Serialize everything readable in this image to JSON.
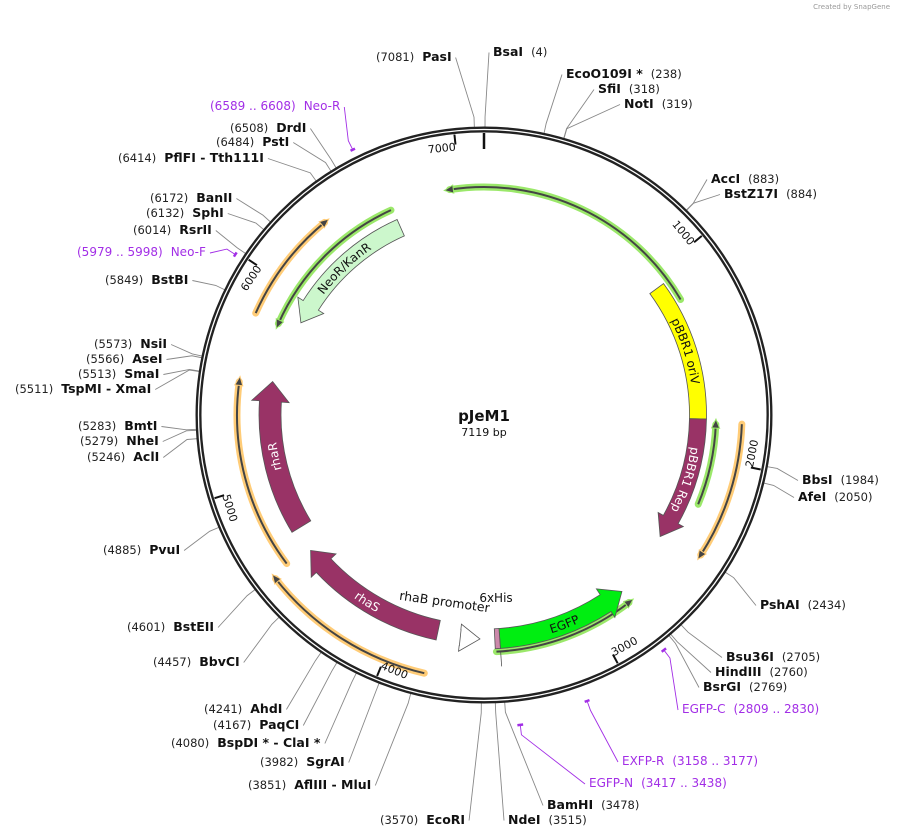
{
  "credit": "Created by SnapGene",
  "plasmid": {
    "name": "pJeM1",
    "length_label": "7119 bp",
    "length": 7119
  },
  "ticks": [
    "1000",
    "2000",
    "3000",
    "4000",
    "5000",
    "6000",
    "7000"
  ],
  "sites": [
    {
      "name": "PasI",
      "pos": 7081,
      "pos_label": "(7081)"
    },
    {
      "name": "BsaI",
      "pos": 4,
      "pos_label": "(4)"
    },
    {
      "name": "EcoO109I *",
      "pos": 238,
      "pos_label": "(238)"
    },
    {
      "name": "SfiI",
      "pos": 318,
      "pos_label": "(318)"
    },
    {
      "name": "NotI",
      "pos": 319,
      "pos_label": "(319)"
    },
    {
      "name": "AccI",
      "pos": 883,
      "pos_label": "(883)"
    },
    {
      "name": "BstZ17I",
      "pos": 884,
      "pos_label": "(884)"
    },
    {
      "name": "BbsI",
      "pos": 1984,
      "pos_label": "(1984)"
    },
    {
      "name": "AfeI",
      "pos": 2050,
      "pos_label": "(2050)"
    },
    {
      "name": "PshAI",
      "pos": 2434,
      "pos_label": "(2434)"
    },
    {
      "name": "Bsu36I",
      "pos": 2705,
      "pos_label": "(2705)"
    },
    {
      "name": "HindIII",
      "pos": 2760,
      "pos_label": "(2760)"
    },
    {
      "name": "BsrGI",
      "pos": 2769,
      "pos_label": "(2769)"
    },
    {
      "name": "BamHI",
      "pos": 3478,
      "pos_label": "(3478)"
    },
    {
      "name": "NdeI",
      "pos": 3515,
      "pos_label": "(3515)"
    },
    {
      "name": "EcoRI",
      "pos": 3570,
      "pos_label": "(3570)"
    },
    {
      "name": "AflIII  - MluI",
      "pos": 3851,
      "pos_label": "(3851)"
    },
    {
      "name": "SgrAI",
      "pos": 3982,
      "pos_label": "(3982)"
    },
    {
      "name": "BspDI * - ClaI *",
      "pos": 4080,
      "pos_label": "(4080)"
    },
    {
      "name": "PaqCI",
      "pos": 4167,
      "pos_label": "(4167)"
    },
    {
      "name": "AhdI",
      "pos": 4241,
      "pos_label": "(4241)"
    },
    {
      "name": "BbvCI",
      "pos": 4457,
      "pos_label": "(4457)"
    },
    {
      "name": "BstEII",
      "pos": 4601,
      "pos_label": "(4601)"
    },
    {
      "name": "PvuI",
      "pos": 4885,
      "pos_label": "(4885)"
    },
    {
      "name": "AclI",
      "pos": 5246,
      "pos_label": "(5246)"
    },
    {
      "name": "NheI",
      "pos": 5279,
      "pos_label": "(5279)"
    },
    {
      "name": "BmtI",
      "pos": 5283,
      "pos_label": "(5283)"
    },
    {
      "name": "TspMI  - XmaI",
      "pos": 5511,
      "pos_label": "(5511)"
    },
    {
      "name": "SmaI",
      "pos": 5513,
      "pos_label": "(5513)"
    },
    {
      "name": "AseI",
      "pos": 5566,
      "pos_label": "(5566)"
    },
    {
      "name": "NsiI",
      "pos": 5573,
      "pos_label": "(5573)"
    },
    {
      "name": "BstBI",
      "pos": 5849,
      "pos_label": "(5849)"
    },
    {
      "name": "RsrII",
      "pos": 6014,
      "pos_label": "(6014)"
    },
    {
      "name": "SphI",
      "pos": 6132,
      "pos_label": "(6132)"
    },
    {
      "name": "BanII",
      "pos": 6172,
      "pos_label": "(6172)"
    },
    {
      "name": "PflFI  - Tth111I",
      "pos": 6414,
      "pos_label": "(6414)"
    },
    {
      "name": "PstI",
      "pos": 6484,
      "pos_label": "(6484)"
    },
    {
      "name": "DrdI",
      "pos": 6508,
      "pos_label": "(6508)"
    }
  ],
  "primers": [
    {
      "name": "Neo-R",
      "start": 6589,
      "end": 6608,
      "range_label": "(6589 .. 6608)"
    },
    {
      "name": "Neo-F",
      "start": 5979,
      "end": 5998,
      "range_label": "(5979 .. 5998)"
    },
    {
      "name": "EGFP-C",
      "start": 2809,
      "end": 2830,
      "range_label": "(2809 .. 2830)"
    },
    {
      "name": "EXFP-R",
      "start": 3158,
      "end": 3177,
      "range_label": "(3158 .. 3177)"
    },
    {
      "name": "EGFP-N",
      "start": 3417,
      "end": 3438,
      "range_label": "(3417 .. 3438)"
    }
  ],
  "features": [
    {
      "name": "pBBR1 oriV",
      "start": 1064,
      "end": 1800,
      "direction": "none",
      "color": "#ffff00",
      "text_color": "#111111"
    },
    {
      "name": "pBBR1 Rep",
      "start": 1800,
      "end": 2464,
      "direction": "forward",
      "color": "#993366",
      "text_color": "#ffffff"
    },
    {
      "name": "EGFP",
      "start": 2808,
      "end": 3480,
      "direction": "reverse",
      "color": "#00ee11",
      "text_color": "#111111"
    },
    {
      "name": "6xHis",
      "start": 3480,
      "end": 3505,
      "direction": "none",
      "color": "#cc88aa",
      "text_color": "#111111"
    },
    {
      "name": "rhaB promoter",
      "start": 3580,
      "end": 3680,
      "direction": "reverse",
      "color": "#ffffff",
      "text_color": "#111111"
    },
    {
      "name": "rhaS",
      "start": 3797,
      "end": 4588,
      "direction": "forward",
      "color": "#993366",
      "text_color": "#ffffff"
    },
    {
      "name": "rhaR",
      "start": 4718,
      "end": 5517,
      "direction": "forward",
      "color": "#993366",
      "text_color": "#ffffff"
    },
    {
      "name": "NeoR/KanR",
      "start": 5868,
      "end": 6645,
      "direction": "reverse",
      "color": "#ccf7cc",
      "text_color": "#111111"
    }
  ],
  "orfs": [
    {
      "start": 6921,
      "end": 1178,
      "direction": "reverse",
      "color": "#9be86a"
    },
    {
      "start": 1800,
      "end": 2227,
      "direction": "reverse",
      "color": "#9be86a"
    },
    {
      "start": 1820,
      "end": 2453,
      "direction": "forward",
      "color": "#ffcc77"
    },
    {
      "start": 2788,
      "end": 3500,
      "direction": "reverse",
      "color": "#9be86a"
    },
    {
      "start": 3817,
      "end": 4608,
      "direction": "forward",
      "color": "#ffcc77"
    },
    {
      "start": 4608,
      "end": 5517,
      "direction": "forward",
      "color": "#ffcc77"
    },
    {
      "start": 5815,
      "end": 6360,
      "direction": "forward",
      "color": "#ffcc77"
    },
    {
      "start": 5786,
      "end": 6636,
      "direction": "reverse",
      "color": "#9be86a"
    }
  ]
}
